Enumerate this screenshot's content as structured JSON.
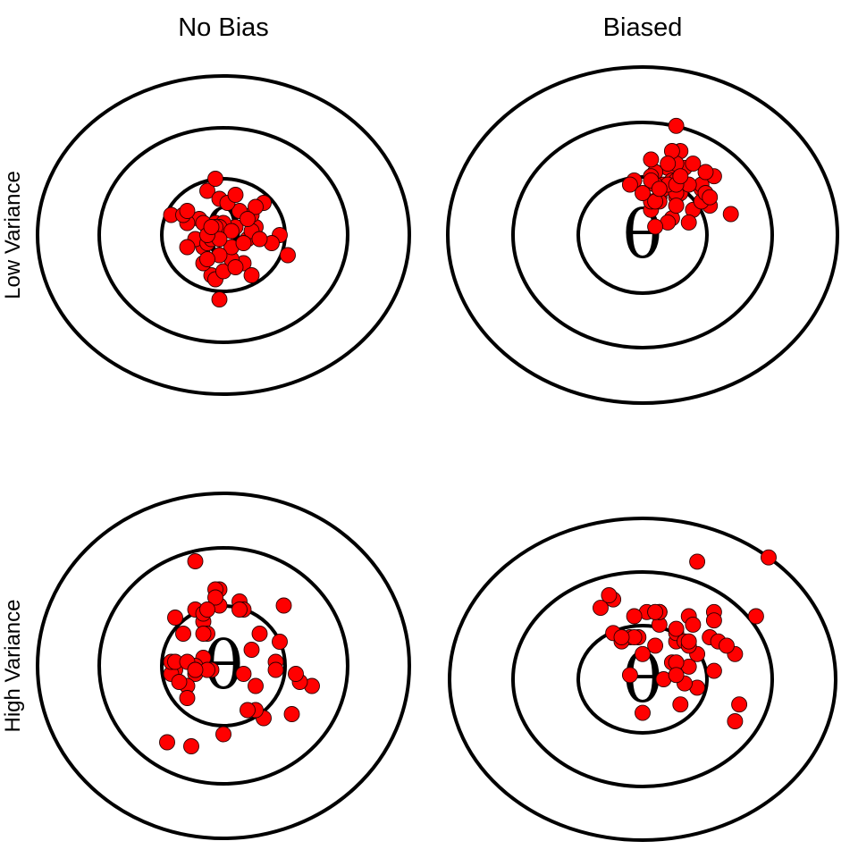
{
  "column_titles": [
    "No Bias",
    "Biased"
  ],
  "row_titles": [
    "Low Variance",
    "High Variance"
  ],
  "target_symbol": "θ",
  "shot_color": "#ff0000",
  "ring_color": "#000000",
  "panels": [
    {
      "column": "No Bias",
      "row": "Low Variance",
      "points": [
        [
          1.6,
          -0.5
        ],
        [
          -1.3,
          0.5
        ],
        [
          0.5,
          -0.7
        ],
        [
          0.8,
          0.2
        ],
        [
          -0.4,
          1.1
        ],
        [
          0.7,
          0.5
        ],
        [
          -0.3,
          -1.0
        ],
        [
          -0.2,
          -1.1
        ],
        [
          0.3,
          0.2
        ],
        [
          -0.1,
          0.9
        ],
        [
          0.0,
          -0.9
        ],
        [
          -0.6,
          0.4
        ],
        [
          -0.5,
          -0.3
        ],
        [
          0.4,
          0.6
        ],
        [
          1.4,
          0.0
        ],
        [
          1.2,
          -0.2
        ],
        [
          0.1,
          0.8
        ],
        [
          -0.7,
          -0.1
        ],
        [
          0.2,
          -0.6
        ],
        [
          -0.2,
          0.3
        ],
        [
          0.0,
          0.3
        ],
        [
          0.3,
          -0.8
        ],
        [
          -0.2,
          1.4
        ],
        [
          -0.9,
          0.3
        ],
        [
          -0.1,
          0.2
        ],
        [
          -1.0,
          0.5
        ],
        [
          -0.5,
          -0.7
        ],
        [
          0.6,
          -0.1
        ],
        [
          0.3,
          1.0
        ],
        [
          1.0,
          0.8
        ],
        [
          -0.2,
          0.2
        ],
        [
          -0.4,
          -0.2
        ],
        [
          0.2,
          -0.3
        ],
        [
          0.7,
          0.1
        ],
        [
          0.2,
          0.1
        ],
        [
          -0.3,
          -0.1
        ],
        [
          -0.9,
          0.6
        ],
        [
          0.5,
          -0.2
        ],
        [
          -0.5,
          0.3
        ],
        [
          -0.1,
          -0.5
        ],
        [
          -0.4,
          -0.6
        ],
        [
          -0.1,
          -0.1
        ],
        [
          0.9,
          -0.1
        ],
        [
          -0.4,
          0.0
        ],
        [
          0.8,
          0.7
        ],
        [
          -0.1,
          -1.6
        ],
        [
          -0.3,
          0.2
        ],
        [
          0.6,
          0.4
        ],
        [
          -0.9,
          -0.3
        ],
        [
          0.7,
          -1.0
        ]
      ]
    },
    {
      "column": "Biased",
      "row": "Low Variance",
      "points": [
        [
          0.4,
          0.9
        ],
        [
          -0.2,
          1.3
        ],
        [
          0.6,
          1.6
        ],
        [
          1.7,
          1.4
        ],
        [
          2.1,
          0.5
        ],
        [
          1.4,
          1.1
        ],
        [
          1.4,
          1.2
        ],
        [
          0.3,
          1.5
        ],
        [
          1.6,
          0.7
        ],
        [
          0.8,
          0.9
        ],
        [
          0.7,
          1.3
        ],
        [
          0.9,
          1.0
        ],
        [
          0.9,
          2.0
        ],
        [
          1.2,
          0.6
        ],
        [
          0.3,
          1.5
        ],
        [
          0.7,
          0.4
        ],
        [
          0.8,
          1.3
        ],
        [
          0.5,
          1.1
        ],
        [
          0.8,
          2.6
        ],
        [
          0.5,
          1.2
        ],
        [
          1.0,
          1.6
        ],
        [
          1.4,
          0.8
        ],
        [
          1.2,
          1.7
        ],
        [
          0.6,
          0.3
        ],
        [
          0.2,
          0.6
        ],
        [
          0.8,
          1.7
        ],
        [
          0.8,
          1.0
        ],
        [
          0.2,
          0.8
        ],
        [
          -0.3,
          1.2
        ],
        [
          1.1,
          0.3
        ],
        [
          1.5,
          1.0
        ],
        [
          0.4,
          0.8
        ],
        [
          0.6,
          1.2
        ],
        [
          1.1,
          1.2
        ],
        [
          0.4,
          1.1
        ],
        [
          0.8,
          0.7
        ],
        [
          0.7,
          2.0
        ],
        [
          0.3,
          0.8
        ],
        [
          0.2,
          1.8
        ],
        [
          0.2,
          1.4
        ],
        [
          1.5,
          1.5
        ],
        [
          0.3,
          1.2
        ],
        [
          0.2,
          1.3
        ],
        [
          1.6,
          0.9
        ],
        [
          0.4,
          1.1
        ],
        [
          0.8,
          1.2
        ],
        [
          0.9,
          1.4
        ],
        [
          0.6,
          1.7
        ],
        [
          0.0,
          1.0
        ],
        [
          0.3,
          0.2
        ]
      ]
    },
    {
      "column": "No Bias",
      "row": "High Variance",
      "points": [
        [
          -1.0,
          0.8
        ],
        [
          2.2,
          -0.5
        ],
        [
          1.7,
          -1.2
        ],
        [
          0.9,
          0.8
        ],
        [
          -1.2,
          -0.1
        ],
        [
          -0.4,
          -0.1
        ],
        [
          -1.2,
          1.2
        ],
        [
          -1.3,
          -0.2
        ],
        [
          -1.4,
          -1.9
        ],
        [
          1.9,
          -0.4
        ],
        [
          1.0,
          -1.3
        ],
        [
          -0.7,
          1.4
        ],
        [
          -0.5,
          1.1
        ],
        [
          -1.3,
          0.1
        ],
        [
          -0.4,
          0.8
        ],
        [
          1.5,
          1.5
        ],
        [
          -0.1,
          1.9
        ],
        [
          -0.3,
          -0.1
        ],
        [
          0.7,
          0.4
        ],
        [
          -0.7,
          -0.2
        ],
        [
          1.3,
          0.1
        ],
        [
          -1.2,
          0.1
        ],
        [
          0.4,
          1.6
        ],
        [
          0.5,
          -0.2
        ],
        [
          -0.5,
          0.8
        ],
        [
          -0.5,
          0.2
        ],
        [
          -0.9,
          -0.5
        ],
        [
          0.8,
          -0.5
        ],
        [
          -0.7,
          0.0
        ],
        [
          -0.5,
          1.3
        ],
        [
          -0.9,
          0.1
        ],
        [
          -1.1,
          -0.4
        ],
        [
          1.3,
          -0.1
        ],
        [
          -0.7,
          2.6
        ],
        [
          -0.9,
          -0.8
        ],
        [
          0.5,
          1.4
        ],
        [
          -0.7,
          -0.1
        ],
        [
          -0.2,
          1.9
        ],
        [
          0.8,
          -1.1
        ],
        [
          -0.1,
          1.5
        ],
        [
          -0.4,
          -0.1
        ],
        [
          1.4,
          0.6
        ],
        [
          -0.2,
          1.7
        ],
        [
          0.4,
          1.4
        ],
        [
          -0.8,
          -2.0
        ],
        [
          1.8,
          -0.2
        ],
        [
          0.0,
          -1.7
        ],
        [
          0.6,
          -1.1
        ],
        [
          -0.4,
          1.4
        ],
        [
          -0.7,
          -0.1
        ]
      ]
    },
    {
      "column": "Biased",
      "row": "High Variance",
      "points": [
        [
          1.3,
          -0.2
        ],
        [
          3.0,
          2.9
        ],
        [
          0.3,
          0.8
        ],
        [
          0.8,
          0.9
        ],
        [
          -0.1,
          1.0
        ],
        [
          -0.3,
          1.0
        ],
        [
          1.1,
          1.5
        ],
        [
          0.0,
          -0.8
        ],
        [
          1.6,
          1.0
        ],
        [
          1.2,
          1.3
        ],
        [
          0.0,
          0.6
        ],
        [
          2.3,
          -0.6
        ],
        [
          0.8,
          1.1
        ],
        [
          0.4,
          1.3
        ],
        [
          1.8,
          0.9
        ],
        [
          -0.5,
          0.9
        ],
        [
          0.1,
          1.6
        ],
        [
          2.2,
          0.6
        ],
        [
          1.1,
          0.3
        ],
        [
          -0.7,
          1.1
        ],
        [
          0.7,
          0.4
        ],
        [
          2.0,
          0.8
        ],
        [
          0.5,
          0.0
        ],
        [
          0.8,
          1.2
        ],
        [
          1.7,
          1.6
        ],
        [
          0.9,
          -0.6
        ],
        [
          2.2,
          -1.0
        ],
        [
          -0.2,
          1.0
        ],
        [
          0.4,
          1.6
        ],
        [
          1.0,
          0.9
        ],
        [
          -1.0,
          1.7
        ],
        [
          1.7,
          0.2
        ],
        [
          1.3,
          0.6
        ],
        [
          1.1,
          0.8
        ],
        [
          -0.3,
          0.1
        ],
        [
          2.7,
          1.5
        ],
        [
          1.7,
          1.4
        ],
        [
          0.3,
          1.6
        ],
        [
          -0.7,
          1.9
        ],
        [
          -0.8,
          2.0
        ],
        [
          -0.2,
          1.5
        ],
        [
          0.8,
          0.4
        ],
        [
          -0.5,
          1.0
        ],
        [
          0.4,
          1.6
        ],
        [
          1.0,
          -0.1
        ],
        [
          1.1,
          0.9
        ],
        [
          0.8,
          0.1
        ],
        [
          0.4,
          1.6
        ],
        [
          0.3,
          1.6
        ],
        [
          1.3,
          2.8
        ]
      ]
    }
  ]
}
